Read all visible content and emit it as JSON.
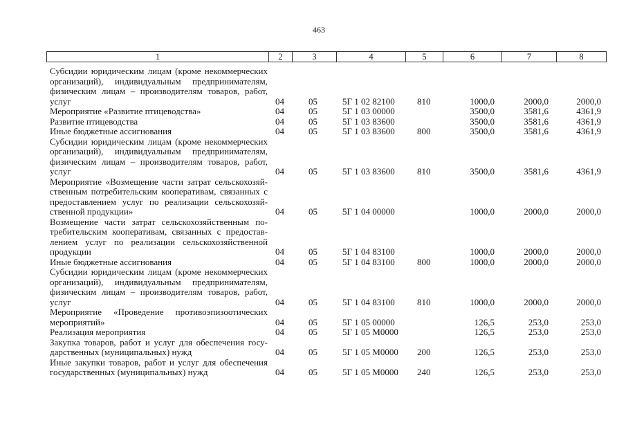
{
  "page_number": "463",
  "header": [
    "1",
    "2",
    "3",
    "4",
    "5",
    "6",
    "7",
    "8"
  ],
  "rows": [
    {
      "lines": [
        "Субсидии юридическим лицам (кроме некоммерческих",
        "организаций), индивидуальным предпринимателям,",
        "физическим лицам – производителям товаров, работ,",
        "услуг"
      ],
      "c2": "04",
      "c3": "05",
      "c4": "5Г 1 02 82100",
      "c5": "810",
      "c6": "1000,0",
      "c7": "2000,0",
      "c8": "2000,0"
    },
    {
      "lines": [
        "Мероприятие «Развитие птицеводства»"
      ],
      "c2": "04",
      "c3": "05",
      "c4": "5Г 1 03 00000",
      "c5": "",
      "c6": "3500,0",
      "c7": "3581,6",
      "c8": "4361,9"
    },
    {
      "lines": [
        "Развитие птицеводства"
      ],
      "c2": "04",
      "c3": "05",
      "c4": "5Г 1 03 83600",
      "c5": "",
      "c6": "3500,0",
      "c7": "3581,6",
      "c8": "4361,9"
    },
    {
      "lines": [
        "Иные бюджетные ассигнования"
      ],
      "c2": "04",
      "c3": "05",
      "c4": "5Г 1 03 83600",
      "c5": "800",
      "c6": "3500,0",
      "c7": "3581,6",
      "c8": "4361,9"
    },
    {
      "lines": [
        "Субсидии юридическим лицам (кроме некоммерческих",
        "организаций), индивидуальным предпринимателям,",
        "физическим лицам – производителям товаров, работ,",
        "услуг"
      ],
      "c2": "04",
      "c3": "05",
      "c4": "5Г 1 03 83600",
      "c5": "810",
      "c6": "3500,0",
      "c7": "3581,6",
      "c8": "4361,9"
    },
    {
      "lines": [
        "Мероприятие «Возмещение части затрат сельскохозяй-",
        "ственным потребительским кооперативам, связанных с",
        "предоставлением услуг по реализации сельскохозяй-",
        "ственной продукции»"
      ],
      "c2": "04",
      "c3": "05",
      "c4": "5Г 1 04 00000",
      "c5": "",
      "c6": "1000,0",
      "c7": "2000,0",
      "c8": "2000,0"
    },
    {
      "lines": [
        "Возмещение части затрат сельскохозяйственным по-",
        "требительским кооперативам, связанных с предостав-",
        "лением услуг по реализации сельскохозяйственной",
        "продукции"
      ],
      "c2": "04",
      "c3": "05",
      "c4": "5Г 1 04 83100",
      "c5": "",
      "c6": "1000,0",
      "c7": "2000,0",
      "c8": "2000,0"
    },
    {
      "lines": [
        "Иные бюджетные ассигнования"
      ],
      "c2": "04",
      "c3": "05",
      "c4": "5Г 1 04 83100",
      "c5": "800",
      "c6": "1000,0",
      "c7": "2000,0",
      "c8": "2000,0"
    },
    {
      "lines": [
        "Субсидии юридическим лицам (кроме некоммерческих",
        "организаций), индивидуальным предпринимателям,",
        "физическим лицам – производителям товаров, работ,",
        "услуг"
      ],
      "c2": "04",
      "c3": "05",
      "c4": "5Г 1 04 83100",
      "c5": "810",
      "c6": "1000,0",
      "c7": "2000,0",
      "c8": "2000,0"
    },
    {
      "lines": [
        "Мероприятие «Проведение противоэпизоотических",
        "мероприятий»"
      ],
      "c2": "04",
      "c3": "05",
      "c4": "5Г 1 05 00000",
      "c5": "",
      "c6": "126,5",
      "c7": "253,0",
      "c8": "253,0"
    },
    {
      "lines": [
        "Реализация мероприятия"
      ],
      "c2": "04",
      "c3": "05",
      "c4": "5Г 1 05 М0000",
      "c5": "",
      "c6": "126,5",
      "c7": "253,0",
      "c8": "253,0"
    },
    {
      "lines": [
        "Закупка товаров, работ и услуг для обеспечения госу-",
        "дарственных (муниципальных) нужд"
      ],
      "c2": "04",
      "c3": "05",
      "c4": "5Г 1 05 М0000",
      "c5": "200",
      "c6": "126,5",
      "c7": "253,0",
      "c8": "253,0"
    },
    {
      "lines": [
        "Иные закупки товаров, работ и услуг для обеспечения",
        "государственных (муниципальных) нужд"
      ],
      "c2": "04",
      "c3": "05",
      "c4": "5Г 1 05 М0000",
      "c5": "240",
      "c6": "126,5",
      "c7": "253,0",
      "c8": "253,0"
    }
  ]
}
